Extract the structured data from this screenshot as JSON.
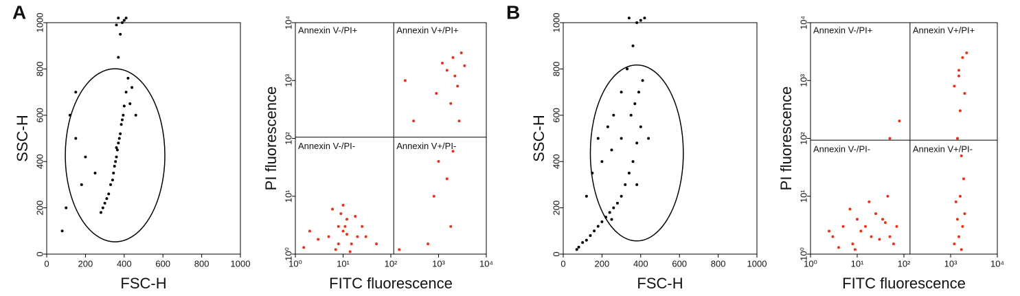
{
  "panel_labels": [
    "A",
    "B"
  ],
  "chart_data": [
    {
      "type": "scatter",
      "xlabel": "FSC-H",
      "ylabel": "SSC-H",
      "xlim": [
        0,
        1000
      ],
      "ylim": [
        0,
        1000
      ],
      "xticks": [
        0,
        200,
        400,
        600,
        800,
        1000
      ],
      "yticks": [
        0,
        200,
        400,
        600,
        800,
        1000
      ],
      "series": [
        {
          "color": "#000000",
          "x": [
            330,
            345,
            360,
            370,
            380,
            390,
            400,
            355,
            340,
            375,
            385,
            365,
            410,
            395,
            350,
            320,
            310,
            300,
            290,
            280,
            420,
            430,
            360,
            250,
            200,
            150,
            180,
            440,
            460,
            370,
            380,
            390,
            400,
            410,
            370,
            360,
            100,
            80,
            150,
            120
          ],
          "values": [
            300,
            350,
            420,
            480,
            520,
            580,
            640,
            400,
            320,
            500,
            560,
            450,
            700,
            600,
            380,
            260,
            240,
            220,
            200,
            180,
            760,
            650,
            460,
            350,
            420,
            500,
            300,
            720,
            600,
            850,
            950,
            1000,
            1010,
            1020,
            1020,
            990,
            200,
            100,
            700,
            600
          ]
        }
      ],
      "gate": {
        "cx": 353,
        "cy": 427,
        "rx": 257,
        "ry": 374
      }
    },
    {
      "type": "scatter",
      "xlabel": "FITC fluorescence",
      "ylabel": "PI fluorescence",
      "xscale": "log",
      "yscale": "log",
      "xlim": [
        1,
        10000
      ],
      "ylim": [
        1,
        10000
      ],
      "xticks": [
        {
          "value": 1,
          "label": "10⁰"
        },
        {
          "value": 10,
          "label": "10¹"
        },
        {
          "value": 100,
          "label": "10²"
        },
        {
          "value": 1000,
          "label": "10³"
        },
        {
          "value": 10000,
          "label": "10⁴"
        }
      ],
      "yticks": [
        {
          "value": 1,
          "label": "10⁰"
        },
        {
          "value": 10,
          "label": "10¹"
        },
        {
          "value": 100,
          "label": "10²"
        },
        {
          "value": 1000,
          "label": "10³"
        },
        {
          "value": 10000,
          "label": "10⁴"
        }
      ],
      "series": [
        {
          "color": "#e8321a",
          "x": [
            5,
            8,
            10,
            12,
            15,
            7,
            9,
            11,
            20,
            3,
            6,
            14,
            25,
            2,
            18,
            1.5,
            30,
            10,
            8,
            12,
            1500,
            2000,
            2500,
            3000,
            1800,
            2200,
            1200,
            900,
            3500,
            2700,
            1000,
            1500,
            2000,
            800,
            1800,
            200,
            300,
            50,
            150,
            600
          ],
          "values": [
            2,
            3,
            2.5,
            4,
            1.5,
            1.2,
            5,
            3,
            2,
            1.8,
            6,
            1.1,
            3,
            2.5,
            4.5,
            1.3,
            2,
            7,
            1.5,
            2.2,
            1500,
            2500,
            800,
            3000,
            400,
            1200,
            2000,
            600,
            1800,
            200,
            40,
            20,
            60,
            10,
            3,
            1000,
            200,
            1.5,
            1.2,
            1.5
          ]
        }
      ],
      "quadrant": {
        "x": 115,
        "y": 105
      },
      "quadrant_labels": [
        "Annexin V-/PI+",
        "Annexin V+/PI+",
        "Annexin V-/PI-",
        "Annexin V+/PI-"
      ]
    },
    {
      "type": "scatter",
      "xlabel": "FSC-H",
      "ylabel": "SSC-H",
      "xlim": [
        0,
        1000
      ],
      "ylim": [
        0,
        1000
      ],
      "xticks": [
        0,
        200,
        400,
        600,
        800,
        1000
      ],
      "yticks": [
        0,
        200,
        400,
        600,
        800,
        1000
      ],
      "series": [
        {
          "color": "#000000",
          "x": [
            300,
            320,
            340,
            360,
            380,
            400,
            280,
            260,
            240,
            220,
            200,
            180,
            160,
            140,
            120,
            100,
            80,
            70,
            350,
            370,
            390,
            410,
            300,
            250,
            200,
            150,
            330,
            360,
            380,
            400,
            420,
            340,
            300,
            260,
            230,
            440,
            380,
            250,
            180,
            120
          ],
          "values": [
            250,
            300,
            350,
            400,
            480,
            550,
            220,
            200,
            180,
            160,
            140,
            120,
            100,
            80,
            60,
            50,
            30,
            20,
            600,
            650,
            700,
            750,
            500,
            450,
            400,
            350,
            800,
            900,
            1000,
            1010,
            1020,
            1020,
            700,
            600,
            550,
            500,
            300,
            150,
            500,
            250
          ]
        }
      ],
      "gate": {
        "cx": 380,
        "cy": 437,
        "rx": 240,
        "ry": 380
      }
    },
    {
      "type": "scatter",
      "xlabel": "FITC fluorescence",
      "ylabel": "PI fluorescence",
      "xscale": "log",
      "yscale": "log",
      "xlim": [
        1,
        10000
      ],
      "ylim": [
        1,
        10000
      ],
      "xticks": [
        {
          "value": 1,
          "label": "10⁰"
        },
        {
          "value": 10,
          "label": "10¹"
        },
        {
          "value": 100,
          "label": "10²"
        },
        {
          "value": 1000,
          "label": "10³"
        },
        {
          "value": 10000,
          "label": "10⁴"
        }
      ],
      "yticks": [
        {
          "value": 1,
          "label": "10⁰"
        },
        {
          "value": 10,
          "label": "10¹"
        },
        {
          "value": 100,
          "label": "10²"
        },
        {
          "value": 1000,
          "label": "10³"
        },
        {
          "value": 10000,
          "label": "10⁴"
        }
      ],
      "series": [
        {
          "color": "#e8321a",
          "x": [
            3,
            5,
            8,
            10,
            12,
            15,
            20,
            25,
            30,
            40,
            50,
            60,
            7,
            9,
            18,
            35,
            4,
            2.5,
            45,
            70,
            1200,
            1500,
            1800,
            2000,
            1300,
            1600,
            1700,
            1400,
            1900,
            1500,
            1200,
            1500,
            1800,
            2000,
            1600,
            1400,
            1700,
            2200,
            50,
            80
          ],
          "values": [
            2,
            3,
            1.5,
            4,
            2.5,
            3,
            2,
            5,
            1.8,
            3.5,
            2,
            1.5,
            6,
            1.2,
            8,
            4,
            1.3,
            2.5,
            10,
            3,
            1.5,
            2,
            3,
            5,
            8,
            10,
            1.2,
            4,
            20,
            1500,
            800,
            1200,
            2500,
            600,
            300,
            100,
            50,
            3000,
            100,
            200
          ]
        }
      ],
      "quadrant": {
        "x": 135,
        "y": 93
      },
      "quadrant_labels": [
        "Annexin V-/PI+",
        "Annexin V+/PI+",
        "Annexin V-/PI-",
        "Annexin V+/PI-"
      ]
    }
  ]
}
